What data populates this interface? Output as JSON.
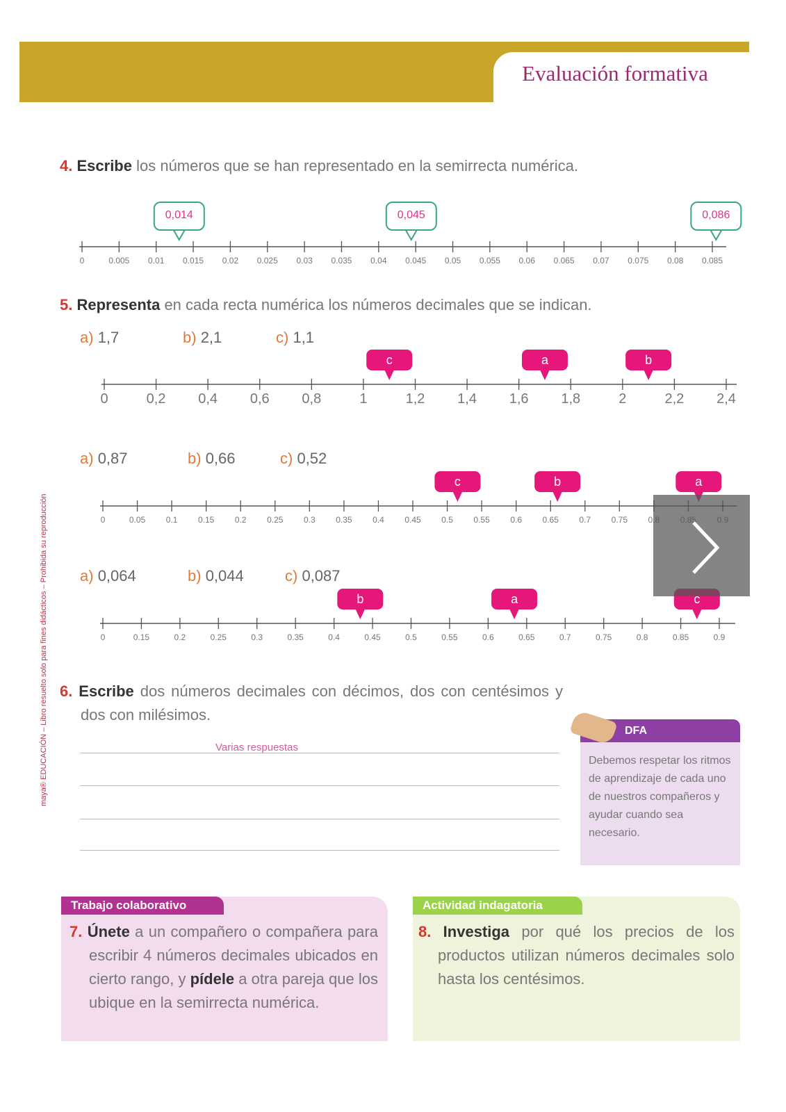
{
  "header": {
    "title": "Evaluación formativa"
  },
  "sidebar": {
    "text": "maya® EDUCACIÓN – Libro resuelto solo para fines didácticos – Prohibida su reproducción"
  },
  "q4": {
    "number": "4.",
    "verb": "Escribe",
    "text": " los números que se han representado en la semirrecta numérica.",
    "ticks": [
      "0",
      "0.005",
      "0.01",
      "0.015",
      "0.02",
      "0.025",
      "0.03",
      "0.035",
      "0.04",
      "0.045",
      "0.05",
      "0.055",
      "0.06",
      "0.065",
      "0.07",
      "0.075",
      "0.08",
      "0.085"
    ],
    "answers": [
      "0,014",
      "0,045",
      "0,086"
    ]
  },
  "q5": {
    "number": "5.",
    "verb": "Representa",
    "text": " en cada recta numérica los números decimales que se indican.",
    "parts": [
      {
        "items": [
          {
            "letter": "a)",
            "value": "1,7"
          },
          {
            "letter": "b)",
            "value": "2,1"
          },
          {
            "letter": "c)",
            "value": "1,1"
          }
        ],
        "ticks": [
          "0",
          "0,2",
          "0,4",
          "0,6",
          "0,8",
          "1",
          "1,2",
          "1,4",
          "1,6",
          "1,8",
          "2",
          "2,2",
          "2,4"
        ],
        "markers": [
          "c",
          "a",
          "b"
        ]
      },
      {
        "items": [
          {
            "letter": "a)",
            "value": "0,87"
          },
          {
            "letter": "b)",
            "value": "0,66"
          },
          {
            "letter": "c)",
            "value": "0,52"
          }
        ],
        "ticks": [
          "0",
          "0.05",
          "0.1",
          "0.15",
          "0.2",
          "0.25",
          "0.3",
          "0.35",
          "0.4",
          "0.45",
          "0.5",
          "0.55",
          "0.6",
          "0.65",
          "0.7",
          "0.75",
          "0.8",
          "0.85",
          "0.9"
        ],
        "markers": [
          "c",
          "b",
          "a"
        ]
      },
      {
        "items": [
          {
            "letter": "a)",
            "value": "0,064"
          },
          {
            "letter": "b)",
            "value": "0,044"
          },
          {
            "letter": "c)",
            "value": "0,087"
          }
        ],
        "ticks": [
          "0",
          "0.15",
          "0.2",
          "0.25",
          "0.3",
          "0.35",
          "0.4",
          "0.45",
          "0.5",
          "0.55",
          "0.6",
          "0.65",
          "0.7",
          "0.75",
          "0.8",
          "0.85",
          "0.9"
        ],
        "markers": [
          "b",
          "a",
          "c"
        ]
      }
    ]
  },
  "q6": {
    "number": "6.",
    "verb": "Escribe",
    "text": " dos números decimales con décimos, dos con centésimos y dos con milésimos.",
    "answer": "Varias respuestas"
  },
  "dfa": {
    "title": "DFA",
    "text": "Debemos respetar los ritmos de aprendizaje de cada uno de nuestros compañeros y ayudar cuando sea necesario."
  },
  "q7": {
    "tag": "Trabajo colaborativo",
    "number": "7.",
    "verb": "Únete",
    "text1": " a un compañero o compañera para escribir 4 números decimales ubicados en cierto rango, y ",
    "verb2": "pídele",
    "text2": " a otra pareja que los ubique en la semirrecta numérica."
  },
  "q8": {
    "tag": "Actividad indagatoria",
    "number": "8.",
    "verb": "Investiga",
    "text": " por qué los precios de los productos utilizan números decimales solo hasta los centésimos."
  }
}
